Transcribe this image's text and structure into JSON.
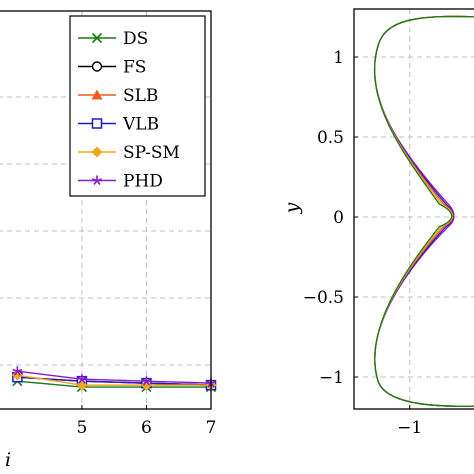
{
  "chart_data": [
    {
      "type": "line",
      "xlabel": "i",
      "ylabel": "",
      "xlim": [
        3.7,
        7
      ],
      "x_ticks": [
        "5",
        "6",
        "7"
      ],
      "legend_position": "top-right",
      "grid": true,
      "series": [
        {
          "name": "DS",
          "color": "#1a7a1a",
          "marker": "x",
          "x": [
            4,
            5,
            6,
            7
          ],
          "y": [
            0.07,
            0.055,
            0.055,
            0.055
          ]
        },
        {
          "name": "FS",
          "color": "#000000",
          "marker": "circle",
          "x": [
            4,
            5,
            6,
            7
          ],
          "y": [
            0.08,
            0.07,
            0.065,
            0.06
          ]
        },
        {
          "name": "SLB",
          "color": "#f05a1a",
          "marker": "triangle",
          "x": [
            4,
            5,
            6,
            7
          ],
          "y": [
            0.08,
            0.07,
            0.065,
            0.06
          ]
        },
        {
          "name": "VLB",
          "color": "#1a1acc",
          "marker": "square",
          "x": [
            4,
            5,
            6,
            7
          ],
          "y": [
            0.08,
            0.07,
            0.065,
            0.06
          ]
        },
        {
          "name": "SP-SM",
          "color": "#f0a81a",
          "marker": "diamond",
          "x": [
            4,
            5,
            6,
            7
          ],
          "y": [
            0.085,
            0.06,
            0.06,
            0.06
          ]
        },
        {
          "name": "PHD",
          "color": "#8a1acc",
          "marker": "star",
          "x": [
            4,
            5,
            6,
            7
          ],
          "y": [
            0.095,
            0.075,
            0.07,
            0.065
          ]
        }
      ]
    },
    {
      "type": "line",
      "xlabel": "",
      "ylabel": "y",
      "xlim": [
        -1.75,
        0
      ],
      "ylim": [
        -1.2,
        1.3
      ],
      "x_ticks": [
        "−1"
      ],
      "y_ticks": [
        "1",
        "0.5",
        "0",
        "−0.5",
        "−1"
      ],
      "grid": true,
      "series": [
        {
          "color": "#8a1acc",
          "notch": 0.0
        },
        {
          "color": "#1a1acc",
          "notch": 0.01
        },
        {
          "color": "#f05a1a",
          "notch": 0.02
        },
        {
          "color": "#f0a81a",
          "notch": 0.03
        },
        {
          "color": "#1a7a1a",
          "notch": 0.04
        }
      ]
    }
  ]
}
